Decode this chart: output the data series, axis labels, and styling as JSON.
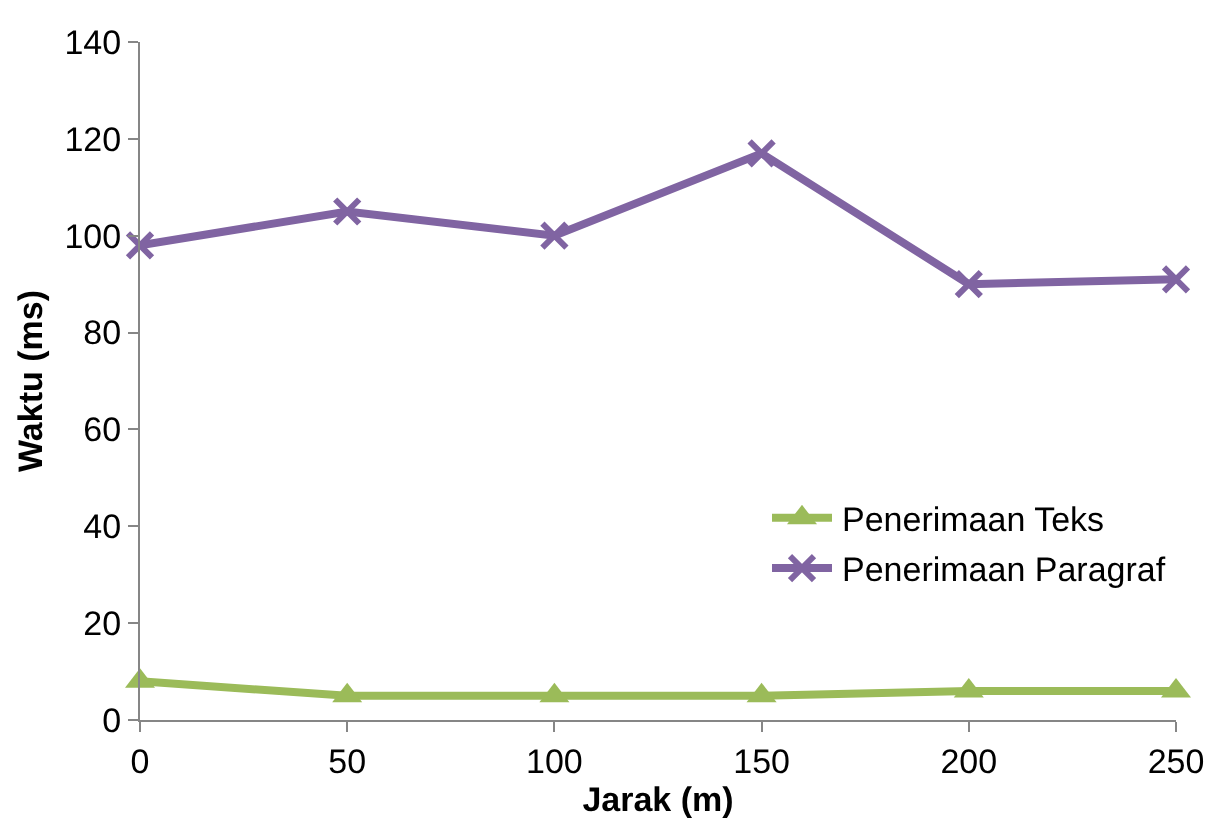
{
  "chart_data": {
    "type": "line",
    "xlabel": "Jarak (m)",
    "ylabel": "Waktu (ms)",
    "x": [
      0,
      50,
      100,
      150,
      200,
      250
    ],
    "series": [
      {
        "name": "Penerimaan Teks",
        "color": "#9bbb59",
        "marker": "triangle",
        "values": [
          8,
          5,
          5,
          5,
          6,
          6
        ]
      },
      {
        "name": "Penerimaan Paragraf",
        "color": "#8064a2",
        "marker": "cross",
        "values": [
          98,
          105,
          100,
          117,
          90,
          91
        ]
      }
    ],
    "xlim": [
      0,
      250
    ],
    "xticks": [
      0,
      50,
      100,
      150,
      200,
      250
    ],
    "ylim": [
      0,
      140
    ],
    "yticks": [
      0,
      20,
      40,
      60,
      80,
      100,
      120,
      140
    ],
    "grid": false,
    "legend": "bottom right",
    "line_style": "solid"
  }
}
